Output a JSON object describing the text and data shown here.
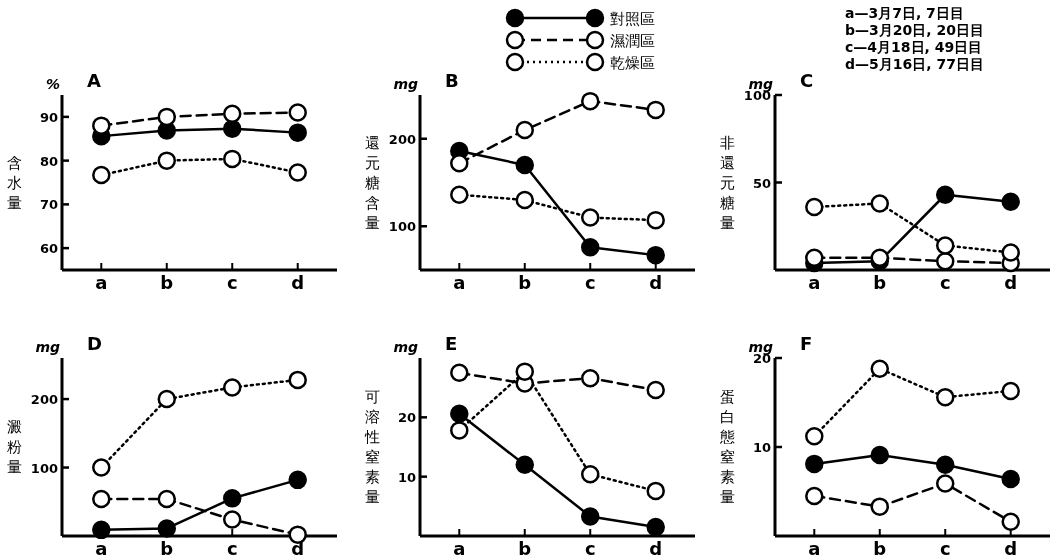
{
  "chart_data": [
    {
      "type": "line",
      "title": "A",
      "ylabel": "含水量",
      "annotations": [
        "%"
      ],
      "marker": "circle",
      "categories": [
        "a",
        "b",
        "c",
        "d"
      ],
      "ylim": [
        55,
        95
      ],
      "yticks": [
        60,
        70,
        80,
        90
      ],
      "series": [
        {
          "color": "#000000",
          "line_style": "solid",
          "values": [
            85.6,
            86.9,
            87.3,
            86.4
          ]
        },
        {
          "color": "#000000",
          "line_style": "dashed",
          "values": [
            88,
            90,
            90.7,
            91
          ]
        },
        {
          "color": "#000000",
          "line_style": "dotted",
          "values": [
            76.7,
            80,
            80.4,
            77.3
          ]
        }
      ]
    },
    {
      "type": "line",
      "title": "B",
      "ylabel": "還元糖含量",
      "annotations": [
        "mg"
      ],
      "marker": "circle",
      "legend": "top",
      "categories": [
        "a",
        "b",
        "c",
        "d"
      ],
      "ylim": [
        50,
        250
      ],
      "yticks": [
        100,
        200
      ],
      "series": [
        {
          "name": "對照區",
          "color": "#000000",
          "line_style": "solid",
          "values": [
            186,
            170,
            76,
            67
          ]
        },
        {
          "name": "濕潤區",
          "color": "#000000",
          "line_style": "dashed",
          "values": [
            172,
            210,
            243,
            233
          ]
        },
        {
          "name": "乾燥區",
          "color": "#000000",
          "line_style": "dotted",
          "values": [
            136,
            130,
            110,
            107
          ]
        }
      ]
    },
    {
      "type": "line",
      "title": "C",
      "ylabel": "非還元糖量",
      "annotations": [
        "mg",
        "a—3月7日, 7日目",
        "b—3月20日, 20日目",
        "c—4月18日, 49日目",
        "d—5月16日, 77日目"
      ],
      "marker": "circle",
      "categories": [
        "a",
        "b",
        "c",
        "d"
      ],
      "ylim": [
        0,
        100
      ],
      "yticks": [
        50,
        100
      ],
      "series": [
        {
          "color": "#000000",
          "line_style": "solid",
          "values": [
            4,
            5,
            43,
            39
          ]
        },
        {
          "color": "#000000",
          "line_style": "dashed",
          "values": [
            7,
            7,
            5,
            4
          ]
        },
        {
          "color": "#000000",
          "line_style": "dotted",
          "values": [
            36,
            38,
            14,
            10
          ]
        }
      ]
    },
    {
      "type": "line",
      "title": "D",
      "ylabel": "澱粉量",
      "annotations": [
        "mg"
      ],
      "marker": "circle",
      "categories": [
        "a",
        "b",
        "c",
        "d"
      ],
      "ylim": [
        0,
        260
      ],
      "yticks": [
        100,
        200
      ],
      "series": [
        {
          "color": "#000000",
          "line_style": "solid",
          "values": [
            9,
            11,
            55,
            82
          ]
        },
        {
          "color": "#000000",
          "line_style": "dashed",
          "values": [
            54,
            54,
            24,
            2
          ]
        },
        {
          "color": "#000000",
          "line_style": "dotted",
          "values": [
            100,
            200,
            217,
            228
          ]
        }
      ]
    },
    {
      "type": "line",
      "title": "E",
      "ylabel": "可溶性窒素量",
      "annotations": [
        "mg"
      ],
      "marker": "circle",
      "categories": [
        "a",
        "b",
        "c",
        "d"
      ],
      "ylim": [
        0,
        30
      ],
      "yticks": [
        10,
        20
      ],
      "series": [
        {
          "color": "#000000",
          "line_style": "solid",
          "values": [
            20.6,
            12,
            3.3,
            1.5
          ]
        },
        {
          "color": "#000000",
          "line_style": "dashed",
          "values": [
            27.5,
            25.7,
            26.6,
            24.6
          ]
        },
        {
          "color": "#000000",
          "line_style": "dotted",
          "values": [
            17.8,
            27.7,
            10.4,
            7.6
          ]
        }
      ]
    },
    {
      "type": "line",
      "title": "F",
      "ylabel": "蛋白態窒素量",
      "annotations": [
        "mg"
      ],
      "marker": "circle",
      "categories": [
        "a",
        "b",
        "c",
        "d"
      ],
      "ylim": [
        0,
        20
      ],
      "yticks": [
        10,
        20
      ],
      "series": [
        {
          "color": "#000000",
          "line_style": "solid",
          "values": [
            8.1,
            9.1,
            8,
            6.4
          ]
        },
        {
          "color": "#000000",
          "line_style": "dashed",
          "values": [
            4.5,
            3.3,
            5.9,
            1.6
          ]
        },
        {
          "color": "#000000",
          "line_style": "dotted",
          "values": [
            11.2,
            18.8,
            15.6,
            16.3
          ]
        }
      ]
    }
  ]
}
